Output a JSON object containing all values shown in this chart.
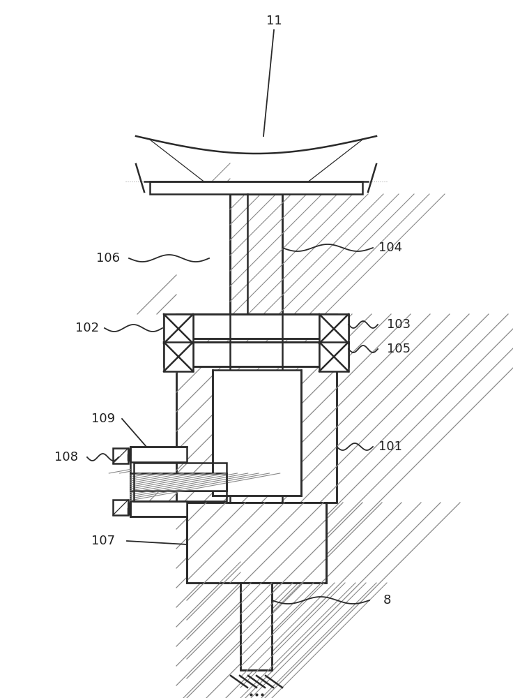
{
  "bg_color": "#ffffff",
  "line_color": "#2a2a2a",
  "lw_main": 1.8,
  "lw_thin": 0.9,
  "fig_width": 7.36,
  "fig_height": 10.0,
  "label_fs": 13,
  "label_color": "#222222"
}
